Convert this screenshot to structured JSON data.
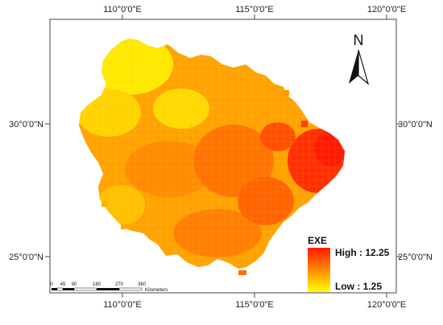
{
  "map": {
    "coords": {
      "top": [
        "110°0'0\"E",
        "115°0'0\"E",
        "120°0'0\"E"
      ],
      "bottom": [
        "110°0'0\"E",
        "115°0'0\"E",
        "120°0'0\"E"
      ],
      "left": [
        "30°0'0\"N",
        "25°0'0\"N"
      ],
      "right": [
        "30°0'0\"N",
        "25°0'0\"N"
      ]
    },
    "north_label": "N",
    "legend": {
      "title": "EXE",
      "high_label": "High : 12.25",
      "low_label": "Low : 1.25",
      "high_color": "#ff1a00",
      "low_color": "#ffff00"
    },
    "scale_bar": {
      "ticks": [
        "0",
        "45",
        "90",
        "180",
        "270",
        "360"
      ],
      "unit": "Kilometers"
    }
  }
}
